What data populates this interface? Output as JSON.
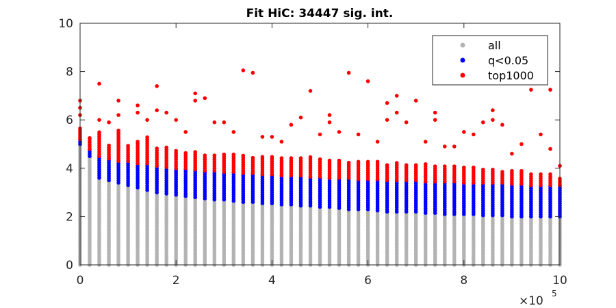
{
  "chart_data": {
    "type": "scatter",
    "title": "Fit HiC: 34447 sig. int.",
    "xlabel": "",
    "ylabel": "",
    "x_exponent_label": "×10",
    "x_exponent_power": "5",
    "x_tick_labels": [
      "0",
      "2",
      "4",
      "6",
      "8",
      "10"
    ],
    "y_tick_labels": [
      "0",
      "2",
      "4",
      "6",
      "8",
      "10"
    ],
    "xlim": [
      0,
      1000000
    ],
    "ylim": [
      0,
      10
    ],
    "grid": false,
    "legend_position": "top-right",
    "columns": {
      "x": [
        0,
        20000,
        40000,
        60000,
        80000,
        100000,
        120000,
        140000,
        160000,
        180000,
        200000,
        220000,
        240000,
        260000,
        280000,
        300000,
        320000,
        340000,
        360000,
        380000,
        400000,
        420000,
        440000,
        460000,
        480000,
        500000,
        520000,
        540000,
        560000,
        580000,
        600000,
        620000,
        640000,
        660000,
        680000,
        700000,
        720000,
        740000,
        760000,
        780000,
        800000,
        820000,
        840000,
        860000,
        880000,
        900000,
        920000,
        940000,
        960000,
        980000,
        1000000
      ],
      "all_max": [
        5.0,
        4.5,
        3.6,
        3.5,
        3.4,
        3.3,
        3.2,
        3.1,
        3.0,
        2.95,
        2.9,
        2.85,
        2.8,
        2.75,
        2.7,
        2.7,
        2.65,
        2.6,
        2.6,
        2.55,
        2.55,
        2.5,
        2.5,
        2.45,
        2.45,
        2.4,
        2.4,
        2.35,
        2.3,
        2.3,
        2.3,
        2.25,
        2.2,
        2.2,
        2.2,
        2.2,
        2.15,
        2.15,
        2.1,
        2.1,
        2.1,
        2.1,
        2.05,
        2.05,
        2.05,
        2.0,
        2.0,
        2.0,
        2.0,
        2.0,
        2.0
      ],
      "q_max": [
        5.2,
        4.8,
        4.5,
        4.4,
        4.3,
        4.3,
        4.2,
        4.2,
        4.1,
        4.05,
        4.0,
        4.0,
        3.95,
        3.9,
        3.9,
        3.85,
        3.85,
        3.8,
        3.8,
        3.75,
        3.75,
        3.7,
        3.7,
        3.7,
        3.65,
        3.65,
        3.6,
        3.6,
        3.6,
        3.55,
        3.55,
        3.55,
        3.5,
        3.5,
        3.5,
        3.5,
        3.45,
        3.45,
        3.45,
        3.45,
        3.4,
        3.4,
        3.4,
        3.4,
        3.4,
        3.35,
        3.35,
        3.3,
        3.3,
        3.3,
        3.3
      ],
      "top_max": [
        5.7,
        5.3,
        5.5,
        5.0,
        5.6,
        5.0,
        5.1,
        5.3,
        4.9,
        4.9,
        4.8,
        4.7,
        4.7,
        4.6,
        4.6,
        4.6,
        4.6,
        4.6,
        4.5,
        4.5,
        4.5,
        4.5,
        4.5,
        4.5,
        4.5,
        4.4,
        4.4,
        4.4,
        4.3,
        4.3,
        4.3,
        4.3,
        4.2,
        4.3,
        4.2,
        4.2,
        4.2,
        4.1,
        4.1,
        4.1,
        4.1,
        4.1,
        4.0,
        4.0,
        3.9,
        3.9,
        3.9,
        3.8,
        3.8,
        3.8,
        3.6
      ]
    },
    "outliers": [
      {
        "x": 0,
        "y": 6.8
      },
      {
        "x": 0,
        "y": 6.5
      },
      {
        "x": 0,
        "y": 6.2
      },
      {
        "x": 40000,
        "y": 7.5
      },
      {
        "x": 40000,
        "y": 6.0
      },
      {
        "x": 60000,
        "y": 5.9
      },
      {
        "x": 80000,
        "y": 6.8
      },
      {
        "x": 80000,
        "y": 6.2
      },
      {
        "x": 120000,
        "y": 6.6
      },
      {
        "x": 120000,
        "y": 6.3
      },
      {
        "x": 140000,
        "y": 6.0
      },
      {
        "x": 160000,
        "y": 7.4
      },
      {
        "x": 160000,
        "y": 6.4
      },
      {
        "x": 180000,
        "y": 6.3
      },
      {
        "x": 200000,
        "y": 6.0
      },
      {
        "x": 220000,
        "y": 5.5
      },
      {
        "x": 240000,
        "y": 7.1
      },
      {
        "x": 240000,
        "y": 6.8
      },
      {
        "x": 260000,
        "y": 6.9
      },
      {
        "x": 280000,
        "y": 5.9
      },
      {
        "x": 300000,
        "y": 5.9
      },
      {
        "x": 320000,
        "y": 5.5
      },
      {
        "x": 340000,
        "y": 8.05
      },
      {
        "x": 360000,
        "y": 7.95
      },
      {
        "x": 380000,
        "y": 5.3
      },
      {
        "x": 400000,
        "y": 5.3
      },
      {
        "x": 420000,
        "y": 5.1
      },
      {
        "x": 440000,
        "y": 5.8
      },
      {
        "x": 460000,
        "y": 6.1
      },
      {
        "x": 480000,
        "y": 7.2
      },
      {
        "x": 500000,
        "y": 5.4
      },
      {
        "x": 520000,
        "y": 6.2
      },
      {
        "x": 520000,
        "y": 5.9
      },
      {
        "x": 540000,
        "y": 5.5
      },
      {
        "x": 560000,
        "y": 7.95
      },
      {
        "x": 580000,
        "y": 5.4
      },
      {
        "x": 600000,
        "y": 7.6
      },
      {
        "x": 620000,
        "y": 5.1
      },
      {
        "x": 640000,
        "y": 6.7
      },
      {
        "x": 640000,
        "y": 6.0
      },
      {
        "x": 660000,
        "y": 7.0
      },
      {
        "x": 660000,
        "y": 6.3
      },
      {
        "x": 680000,
        "y": 5.9
      },
      {
        "x": 700000,
        "y": 6.8
      },
      {
        "x": 720000,
        "y": 5.1
      },
      {
        "x": 740000,
        "y": 6.3
      },
      {
        "x": 740000,
        "y": 6.0
      },
      {
        "x": 760000,
        "y": 4.9
      },
      {
        "x": 780000,
        "y": 4.9
      },
      {
        "x": 800000,
        "y": 5.5
      },
      {
        "x": 820000,
        "y": 5.4
      },
      {
        "x": 840000,
        "y": 5.9
      },
      {
        "x": 860000,
        "y": 6.4
      },
      {
        "x": 860000,
        "y": 6.0
      },
      {
        "x": 880000,
        "y": 5.8
      },
      {
        "x": 900000,
        "y": 4.6
      },
      {
        "x": 920000,
        "y": 5.0
      },
      {
        "x": 940000,
        "y": 7.25
      },
      {
        "x": 960000,
        "y": 5.4
      },
      {
        "x": 980000,
        "y": 7.25
      },
      {
        "x": 980000,
        "y": 4.8
      },
      {
        "x": 1000000,
        "y": 4.1
      }
    ],
    "series": [
      {
        "name": "all",
        "color": "#b3b3b3"
      },
      {
        "name": "q<0.05",
        "color": "#0000ff"
      },
      {
        "name": "top1000",
        "color": "#ff0000"
      }
    ]
  }
}
